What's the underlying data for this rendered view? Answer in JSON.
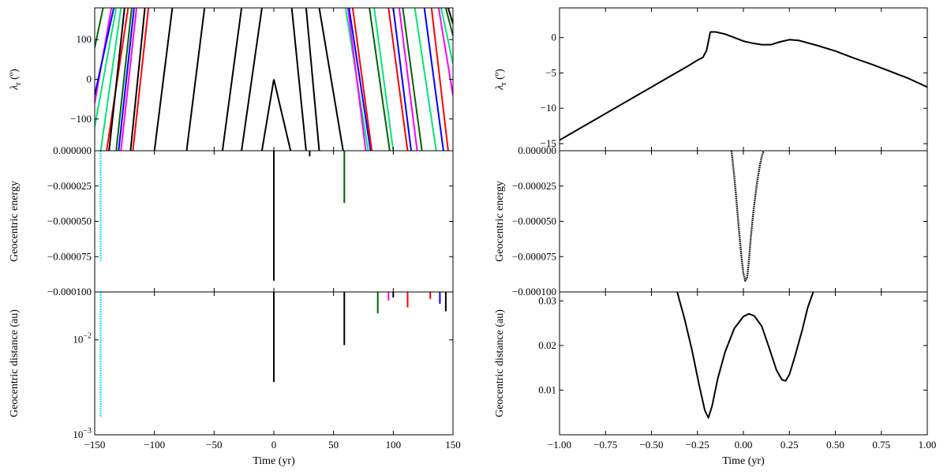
{
  "figure": {
    "left_column": {
      "panels": [
        {
          "id": "lambda",
          "ylabel": "λr (º)",
          "ylabel_main": "λ",
          "ylabel_sub": "r",
          "ylabel_unit": " (º)",
          "ylim": [
            -180,
            180
          ],
          "yticks": [
            {
              "v": 100,
              "t": "100"
            },
            {
              "v": 0,
              "t": "0"
            },
            {
              "v": -100,
              "t": "−100"
            }
          ]
        },
        {
          "id": "energy",
          "ylabel": "Geocentric energy",
          "ylim": [
            -0.0001,
            0.0
          ],
          "yticks": [
            {
              "v": 0.0,
              "t": "0.000000"
            },
            {
              "v": -2.5e-05,
              "t": "−0.000025"
            },
            {
              "v": -5e-05,
              "t": "−0.000050"
            },
            {
              "v": -7.5e-05,
              "t": "−0.000075"
            },
            {
              "v": -0.0001,
              "t": "−0.000100"
            }
          ]
        },
        {
          "id": "distance",
          "ylabel": "Geocentric distance (au)",
          "scale": "log",
          "ylim": [
            0.001,
            0.032
          ],
          "yticks": [
            {
              "v": 0.01,
              "t": "10",
              "sup": "−2"
            },
            {
              "v": 0.001,
              "t": "10",
              "sup": "−3"
            }
          ]
        }
      ],
      "xlabel": "Time (yr)",
      "xlim": [
        -150,
        150
      ],
      "xticks": [
        {
          "v": -150,
          "t": "−150"
        },
        {
          "v": -100,
          "t": "−100"
        },
        {
          "v": -50,
          "t": "−50"
        },
        {
          "v": 0,
          "t": "0"
        },
        {
          "v": 50,
          "t": "50"
        },
        {
          "v": 100,
          "t": "100"
        },
        {
          "v": 150,
          "t": "150"
        }
      ]
    },
    "right_column": {
      "panels": [
        {
          "id": "lambda",
          "ylabel": "λr (º)",
          "ylabel_main": "λ",
          "ylabel_sub": "r",
          "ylabel_unit": " (º)",
          "ylim": [
            -16,
            4.2
          ],
          "yticks": [
            {
              "v": 0,
              "t": "0"
            },
            {
              "v": -5,
              "t": "−5"
            },
            {
              "v": -10,
              "t": "−10"
            },
            {
              "v": -15,
              "t": "−15"
            }
          ]
        },
        {
          "id": "energy",
          "ylabel": "Geocentric energy",
          "ylim": [
            -0.0001,
            0.0
          ],
          "yticks": [
            {
              "v": 0.0,
              "t": "0.000000"
            },
            {
              "v": -2.5e-05,
              "t": "−0.000025"
            },
            {
              "v": -5e-05,
              "t": "−0.000050"
            },
            {
              "v": -7.5e-05,
              "t": "−0.000075"
            },
            {
              "v": -0.0001,
              "t": "−0.000100"
            }
          ]
        },
        {
          "id": "distance",
          "ylabel": "Geocentric distance (au)",
          "ylim": [
            0.0,
            0.032
          ],
          "yticks": [
            {
              "v": 0.01,
              "t": "0.01"
            },
            {
              "v": 0.02,
              "t": "0.02"
            },
            {
              "v": 0.03,
              "t": "0.03"
            }
          ]
        }
      ],
      "xlabel": "Time (yr)",
      "xlim": [
        -1.0,
        1.0
      ],
      "xticks": [
        {
          "v": -1.0,
          "t": "−1.00"
        },
        {
          "v": -0.75,
          "t": "−0.75"
        },
        {
          "v": -0.5,
          "t": "−0.50"
        },
        {
          "v": -0.25,
          "t": "−0.25"
        },
        {
          "v": 0.0,
          "t": "0.00"
        },
        {
          "v": 0.25,
          "t": "0.25"
        },
        {
          "v": 0.5,
          "t": "0.50"
        },
        {
          "v": 0.75,
          "t": "0.75"
        },
        {
          "v": 1.0,
          "t": "1.00"
        }
      ]
    }
  },
  "chart_data": [
    {
      "type": "line",
      "panel": "left-lambda",
      "ylabel": "λr (º)",
      "xlim": [
        -150,
        150
      ],
      "ylim": [
        -180,
        180
      ],
      "nominal_orbit": {
        "color": "#000000",
        "segments": [
          [
            [
              -73,
              -180
            ],
            [
              -58,
              180
            ]
          ],
          [
            [
              -43,
              -180
            ],
            [
              -27,
              180
            ]
          ],
          [
            [
              -27,
              -180
            ],
            [
              -10,
              180
            ]
          ],
          [
            [
              -100,
              -180
            ],
            [
              -85,
              180
            ]
          ],
          [
            [
              -120,
              -180
            ],
            [
              -108,
              180
            ]
          ],
          [
            [
              -10,
              -180
            ],
            [
              0,
              0
            ]
          ],
          [
            [
              0,
              0
            ],
            [
              14,
              -180
            ]
          ],
          [
            [
              15,
              180
            ],
            [
              27,
              -180
            ]
          ],
          [
            [
              38,
              180
            ],
            [
              58,
              -180
            ]
          ],
          [
            [
              27,
              180
            ],
            [
              38,
              -180
            ]
          ]
        ]
      },
      "clone_segments": [
        {
          "color": "#00e676",
          "pts": [
            [
              -150,
              -120
            ],
            [
              -132,
              180
            ]
          ]
        },
        {
          "color": "#ff00ff",
          "pts": [
            [
              -150,
              -60
            ],
            [
              -136,
              180
            ]
          ]
        },
        {
          "color": "#0000ff",
          "pts": [
            [
              -150,
              -40
            ],
            [
              -134,
              180
            ]
          ]
        },
        {
          "color": "#006400",
          "pts": [
            [
              -150,
              80
            ],
            [
              -143,
              180
            ]
          ]
        },
        {
          "color": "#00e676",
          "pts": [
            [
              -145,
              -180
            ],
            [
              -128,
              180
            ]
          ]
        },
        {
          "color": "#ff0000",
          "pts": [
            [
              -140,
              -180
            ],
            [
              -122,
              180
            ]
          ]
        },
        {
          "color": "#000000",
          "pts": [
            [
              -138,
              -180
            ],
            [
              -125,
              180
            ]
          ]
        },
        {
          "color": "#0000ff",
          "pts": [
            [
              -130,
              -180
            ],
            [
              -117,
              180
            ]
          ]
        },
        {
          "color": "#ff00ff",
          "pts": [
            [
              -128,
              -180
            ],
            [
              -115,
              180
            ]
          ]
        },
        {
          "color": "#006400",
          "pts": [
            [
              -132,
              -180
            ],
            [
              -119,
              180
            ]
          ]
        },
        {
          "color": "#ff0000",
          "pts": [
            [
              -118,
              -180
            ],
            [
              -105,
              180
            ]
          ]
        },
        {
          "color": "#00e676",
          "pts": [
            [
              60,
              180
            ],
            [
              79,
              -180
            ]
          ]
        },
        {
          "color": "#ff00ff",
          "pts": [
            [
              62,
              180
            ],
            [
              77,
              -180
            ]
          ]
        },
        {
          "color": "#0000ff",
          "pts": [
            [
              63,
              180
            ],
            [
              81,
              -180
            ]
          ]
        },
        {
          "color": "#ff0000",
          "pts": [
            [
              66,
              180
            ],
            [
              82,
              -180
            ]
          ]
        },
        {
          "color": "#006400",
          "pts": [
            [
              80,
              180
            ],
            [
              97,
              -180
            ]
          ]
        },
        {
          "color": "#00e676",
          "pts": [
            [
              84,
              180
            ],
            [
              100,
              -180
            ]
          ]
        },
        {
          "color": "#ff0000",
          "pts": [
            [
              96,
              180
            ],
            [
              112,
              -180
            ]
          ]
        },
        {
          "color": "#0000ff",
          "pts": [
            [
              100,
              180
            ],
            [
              115,
              -180
            ]
          ]
        },
        {
          "color": "#ff00ff",
          "pts": [
            [
              105,
              180
            ],
            [
              120,
              -180
            ]
          ]
        },
        {
          "color": "#006400",
          "pts": [
            [
              108,
              180
            ],
            [
              124,
              -180
            ]
          ]
        },
        {
          "color": "#00e676",
          "pts": [
            [
              118,
              180
            ],
            [
              136,
              -180
            ]
          ]
        },
        {
          "color": "#0000ff",
          "pts": [
            [
              126,
              180
            ],
            [
              142,
              -180
            ]
          ]
        },
        {
          "color": "#ff0000",
          "pts": [
            [
              132,
              180
            ],
            [
              146,
              -180
            ]
          ]
        },
        {
          "color": "#ff00ff",
          "pts": [
            [
              138,
              180
            ],
            [
              150,
              -40
            ]
          ]
        },
        {
          "color": "#00e676",
          "pts": [
            [
              140,
              180
            ],
            [
              150,
              40
            ]
          ]
        },
        {
          "color": "#006400",
          "pts": [
            [
              144,
              180
            ],
            [
              150,
              110
            ]
          ]
        },
        {
          "color": "#000000",
          "pts": [
            [
              146,
              180
            ],
            [
              150,
              140
            ]
          ]
        }
      ]
    },
    {
      "type": "bar",
      "panel": "left-energy",
      "ylabel": "Geocentric energy",
      "xlim": [
        -150,
        150
      ],
      "ylim": [
        -0.0001,
        0.0
      ],
      "spikes": [
        {
          "x": -145,
          "min": -7.8e-05,
          "color": "#00e5ee"
        },
        {
          "x": 0,
          "min": -9.2e-05,
          "color": "#000000"
        },
        {
          "x": 30,
          "min": -4e-06,
          "color": "#000000"
        },
        {
          "x": 59,
          "min": -3.7e-05,
          "color": "#006400"
        }
      ]
    },
    {
      "type": "bar",
      "panel": "left-distance",
      "ylabel": "Geocentric distance (au)",
      "scale": "log",
      "xlim": [
        -150,
        150
      ],
      "ylim": [
        0.001,
        0.032
      ],
      "spikes": [
        {
          "x": -145,
          "min": 0.00155,
          "color": "#00e5ee"
        },
        {
          "x": 0,
          "min": 0.0036,
          "color": "#000000"
        },
        {
          "x": 59,
          "min": 0.0088,
          "color": "#000000"
        },
        {
          "x": 87,
          "min": 0.019,
          "color": "#006400"
        },
        {
          "x": 96,
          "min": 0.026,
          "color": "#ff00ff"
        },
        {
          "x": 100,
          "min": 0.028,
          "color": "#000000"
        },
        {
          "x": 112,
          "min": 0.022,
          "color": "#ff0000"
        },
        {
          "x": 131,
          "min": 0.027,
          "color": "#ff0000"
        },
        {
          "x": 139,
          "min": 0.024,
          "color": "#0000ff"
        },
        {
          "x": 144,
          "min": 0.02,
          "color": "#000000"
        }
      ]
    },
    {
      "type": "line",
      "panel": "right-lambda",
      "ylabel": "λr (º)",
      "xlim": [
        -1.0,
        1.0
      ],
      "ylim": [
        -16,
        4.2
      ],
      "series": [
        {
          "color": "#000000",
          "x": [
            -1.0,
            -0.9,
            -0.8,
            -0.7,
            -0.6,
            -0.5,
            -0.4,
            -0.3,
            -0.25,
            -0.22,
            -0.2,
            -0.18,
            -0.15,
            -0.1,
            -0.05,
            0.0,
            0.05,
            0.1,
            0.15,
            0.2,
            0.25,
            0.3,
            0.4,
            0.5,
            0.6,
            0.7,
            0.8,
            0.9,
            1.0
          ],
          "y": [
            -14.5,
            -13.0,
            -11.5,
            -10.0,
            -8.5,
            -7.0,
            -5.5,
            -4.0,
            -3.2,
            -2.8,
            -1.8,
            0.8,
            0.8,
            0.5,
            0.0,
            -0.5,
            -0.8,
            -1.0,
            -1.0,
            -0.6,
            -0.3,
            -0.4,
            -1.1,
            -1.9,
            -2.9,
            -3.8,
            -4.8,
            -5.8,
            -7.0
          ]
        }
      ]
    },
    {
      "type": "line",
      "panel": "right-energy",
      "ylabel": "Geocentric energy",
      "xlim": [
        -1.0,
        1.0
      ],
      "ylim": [
        -0.0001,
        0.0
      ],
      "series": [
        {
          "color": "#000000",
          "x": [
            -0.065,
            -0.05,
            -0.04,
            -0.03,
            -0.02,
            -0.01,
            0.0,
            0.01,
            0.02,
            0.03,
            0.04,
            0.05,
            0.06,
            0.07,
            0.08,
            0.09,
            0.1,
            0.11
          ],
          "y": [
            -0.0,
            -1.8e-05,
            -3.2e-05,
            -4.7e-05,
            -6.2e-05,
            -7.6e-05,
            -8.7e-05,
            -9.2e-05,
            -9e-05,
            -7.8e-05,
            -6.2e-05,
            -4.9e-05,
            -3.7e-05,
            -2.7e-05,
            -1.8e-05,
            -1e-05,
            -4e-06,
            0.0
          ]
        }
      ]
    },
    {
      "type": "line",
      "panel": "right-distance",
      "ylabel": "Geocentric distance (au)",
      "xlim": [
        -1.0,
        1.0
      ],
      "ylim": [
        0.0,
        0.032
      ],
      "series": [
        {
          "color": "#000000",
          "x": [
            -0.36,
            -0.32,
            -0.28,
            -0.24,
            -0.21,
            -0.19,
            -0.17,
            -0.14,
            -0.1,
            -0.05,
            0.0,
            0.03,
            0.06,
            0.1,
            0.14,
            0.18,
            0.21,
            0.23,
            0.25,
            0.28,
            0.32,
            0.35,
            0.38
          ],
          "y": [
            0.032,
            0.026,
            0.019,
            0.011,
            0.0055,
            0.0038,
            0.0065,
            0.0125,
            0.0185,
            0.0238,
            0.0265,
            0.0271,
            0.0266,
            0.0243,
            0.0195,
            0.0145,
            0.0123,
            0.0121,
            0.0135,
            0.0175,
            0.0235,
            0.0285,
            0.032
          ]
        }
      ]
    }
  ]
}
